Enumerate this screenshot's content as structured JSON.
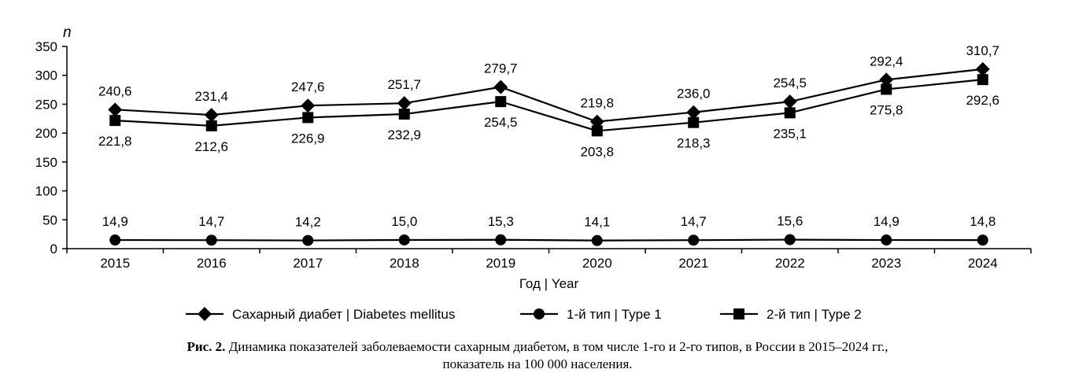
{
  "chart_data": {
    "type": "line",
    "ylabel": "n",
    "xlabel": "Год | Year",
    "ylim": [
      0,
      350
    ],
    "yticks": [
      0,
      50,
      100,
      150,
      200,
      250,
      300,
      350
    ],
    "categories": [
      "2015",
      "2016",
      "2017",
      "2018",
      "2019",
      "2020",
      "2021",
      "2022",
      "2023",
      "2024"
    ],
    "series": [
      {
        "name": "Сахарный диабет | Diabetes mellitus",
        "marker": "diamond",
        "values": [
          240.6,
          231.4,
          247.6,
          251.7,
          279.7,
          219.8,
          236.0,
          254.5,
          292.4,
          310.7
        ],
        "labels": [
          "240,6",
          "231,4",
          "247,6",
          "251,7",
          "279,7",
          "219,8",
          "236,0",
          "254,5",
          "292,4",
          "310,7"
        ],
        "label_position": "above"
      },
      {
        "name": "1-й тип | Type 1",
        "marker": "circle",
        "values": [
          14.9,
          14.7,
          14.2,
          15.0,
          15.3,
          14.1,
          14.7,
          15.6,
          14.9,
          14.8
        ],
        "labels": [
          "14,9",
          "14,7",
          "14,2",
          "15,0",
          "15,3",
          "14,1",
          "14,7",
          "15,6",
          "14,9",
          "14,8"
        ],
        "label_position": "above"
      },
      {
        "name": "2-й тип | Type 2",
        "marker": "square",
        "values": [
          221.8,
          212.6,
          226.9,
          232.9,
          254.5,
          203.8,
          218.3,
          235.1,
          275.8,
          292.6
        ],
        "labels": [
          "221,8",
          "212,6",
          "226,9",
          "232,9",
          "254,5",
          "203,8",
          "218,3",
          "235,1",
          "275,8",
          "292,6"
        ],
        "label_position": "below"
      }
    ],
    "legend_position": "bottom",
    "grid": false,
    "line_color": "#000000"
  },
  "caption": {
    "bold": "Рис. 2.",
    "text": "Динамика показателей заболеваемости сахарным диабетом, в том числе 1-го и 2-го типов, в России в 2015–2024 гг.,",
    "text2": "показатель на 100 000 населения."
  }
}
